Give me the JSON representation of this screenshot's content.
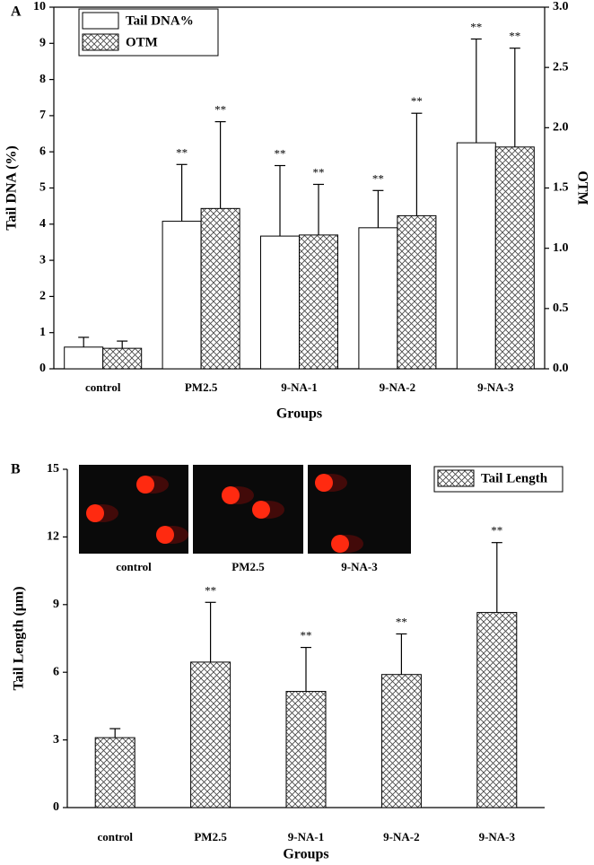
{
  "chart_data": [
    {
      "type": "bar",
      "panel": "A",
      "ylabel": "Tail DNA (%)",
      "y2label": "OTM",
      "xlabel": "Groups",
      "categories": [
        "control",
        "PM2.5",
        "9-NA-1",
        "9-NA-2",
        "9-NA-3"
      ],
      "ylim": [
        0,
        10
      ],
      "yticks": [
        0,
        1,
        2,
        3,
        4,
        5,
        6,
        7,
        8,
        9,
        10
      ],
      "y2lim": [
        0,
        3
      ],
      "y2ticks": [
        {
          "value": 0,
          "label": "0.0"
        },
        0.5,
        {
          "value": 1,
          "label": "1.0"
        },
        1.5,
        {
          "value": 2,
          "label": "2.0"
        },
        2.5,
        {
          "value": 3,
          "label": "3.0"
        }
      ],
      "grid": false,
      "legend": "upper left",
      "series": [
        {
          "name": "Tail DNA%",
          "color": "#ffffff",
          "hatch": false,
          "values": [
            0.6,
            4.08,
            3.67,
            3.9,
            6.25
          ],
          "errors": [
            0.27,
            1.57,
            1.95,
            1.03,
            2.87
          ],
          "significance": [
            null,
            "**",
            "**",
            "**",
            "**"
          ]
        },
        {
          "name": "OTM",
          "color": "#ffffff",
          "hatch": true,
          "axis": "y2",
          "values": [
            0.17,
            1.33,
            1.11,
            1.27,
            1.84
          ],
          "errors": [
            0.06,
            0.72,
            0.42,
            0.85,
            0.82
          ],
          "significance": [
            null,
            "**",
            "**",
            "**",
            "**"
          ]
        }
      ]
    },
    {
      "type": "bar",
      "panel": "B",
      "ylabel": "Tail Length (μm)",
      "xlabel": "Groups",
      "categories": [
        "control",
        "PM2.5",
        "9-NA-1",
        "9-NA-2",
        "9-NA-3"
      ],
      "ylim": [
        0,
        15
      ],
      "yticks": [
        0,
        3,
        6,
        9,
        12,
        15
      ],
      "grid": false,
      "legend": "upper right",
      "inset_labels": [
        "control",
        "PM2.5",
        "9-NA-3"
      ],
      "series": [
        {
          "name": "Tail Length",
          "color": "#ffffff",
          "hatch": true,
          "values": [
            3.1,
            6.45,
            5.15,
            5.9,
            8.65
          ],
          "errors": [
            0.4,
            2.65,
            1.95,
            1.8,
            3.1
          ],
          "significance": [
            null,
            "**",
            "**",
            "**",
            "**"
          ]
        }
      ]
    }
  ]
}
